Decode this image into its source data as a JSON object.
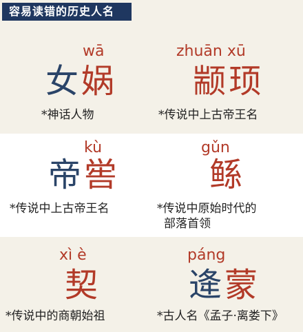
{
  "header": {
    "title": "容易读错的历史人名"
  },
  "entries": [
    {
      "pinyin": "wā",
      "name": "女娲",
      "note": "*神话人物"
    },
    {
      "pinyin": "zhuān xū",
      "name": "颛顼",
      "note": "*传说中上古帝王名"
    },
    {
      "pinyin": "kù",
      "name": "帝喾",
      "note": "*传说中上古帝王名"
    },
    {
      "pinyin": "gǔn",
      "name": "鲧",
      "note_line1": "*传说中原始时代的",
      "note_line2": "部落首领"
    },
    {
      "pinyin": "xì è",
      "name": "契",
      "note": "*传说中的商朝始祖"
    },
    {
      "pinyin": "páng",
      "name": "逄蒙",
      "note": "*古人名《孟子·离娄下》"
    }
  ],
  "colors": {
    "header_bg": "#1f3760",
    "accent_red": "#b23a28",
    "ink_blue": "#2a4468"
  }
}
